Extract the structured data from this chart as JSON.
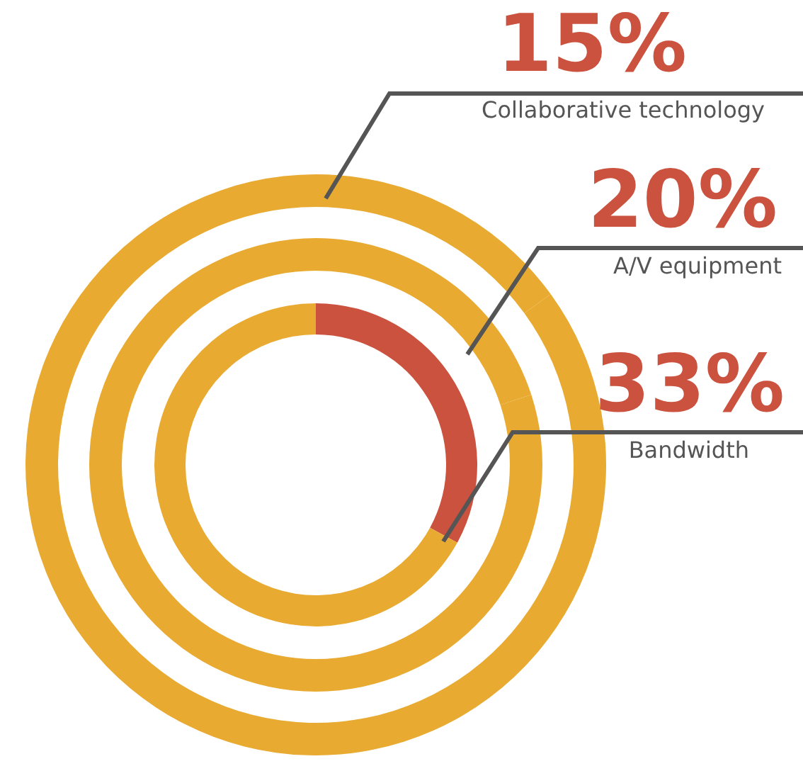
{
  "chart_data": {
    "type": "other",
    "categories": [
      "Collaborative technology",
      "A/V equipment",
      "Bandwidth"
    ],
    "values": [
      15,
      20,
      33
    ],
    "value_labels": [
      "15%",
      "20%",
      "33%"
    ],
    "colors": [
      "#e8aa31",
      "#e8aa31",
      "#cb523e"
    ]
  }
}
